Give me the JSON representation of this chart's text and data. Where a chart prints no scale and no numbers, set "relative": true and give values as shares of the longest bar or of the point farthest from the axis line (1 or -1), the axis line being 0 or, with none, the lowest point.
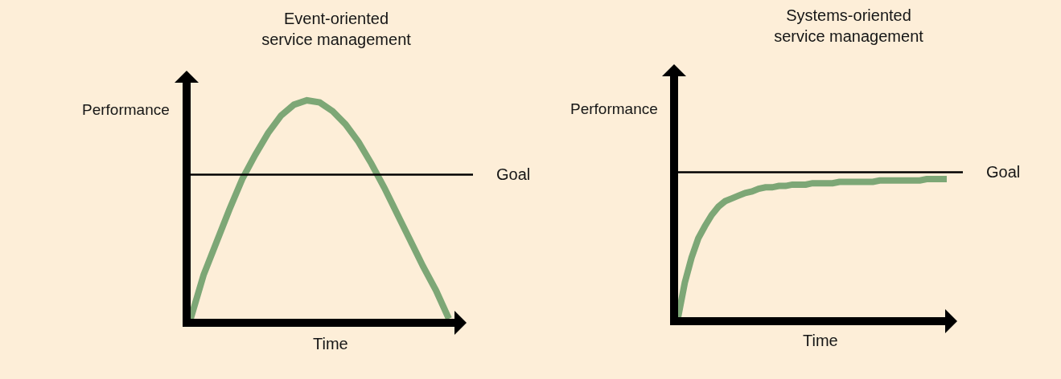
{
  "chart_data": [
    {
      "type": "line",
      "title": "Event-oriented\nservice management",
      "xlabel": "Time",
      "ylabel": "Performance",
      "relative": true,
      "categories": [
        null,
        null,
        null,
        null,
        null,
        null,
        null,
        null,
        null,
        null,
        null,
        null,
        null,
        null,
        null,
        null,
        null,
        null,
        null,
        null,
        null
      ],
      "series": [
        {
          "color": "#7da776",
          "values": [
            0,
            0.2,
            0.35,
            0.5,
            0.64,
            0.75,
            0.85,
            0.93,
            0.98,
            1,
            0.99,
            0.95,
            0.89,
            0.81,
            0.71,
            0.6,
            0.48,
            0.36,
            0.24,
            0.13,
            0
          ]
        }
      ],
      "ref_lines": [
        {
          "axis": "y",
          "value": 0.66,
          "label": "Goal",
          "color": "#000000"
        }
      ]
    },
    {
      "type": "line",
      "title": "Systems-oriented\nservice management",
      "xlabel": "Time",
      "ylabel": "Performance",
      "relative": true,
      "categories": [
        null,
        null,
        null,
        null,
        null,
        null,
        null,
        null,
        null,
        null,
        null,
        null,
        null,
        null,
        null,
        null,
        null,
        null,
        null,
        null,
        null,
        null,
        null,
        null,
        null,
        null,
        null,
        null,
        null,
        null,
        null,
        null,
        null,
        null,
        null,
        null,
        null,
        null,
        null,
        null,
        null
      ],
      "series": [
        {
          "color": "#7da776",
          "values": [
            0,
            0.25,
            0.43,
            0.57,
            0.66,
            0.74,
            0.8,
            0.84,
            0.86,
            0.88,
            0.9,
            0.91,
            0.93,
            0.94,
            0.94,
            0.95,
            0.95,
            0.96,
            0.96,
            0.96,
            0.97,
            0.97,
            0.97,
            0.97,
            0.98,
            0.98,
            0.98,
            0.98,
            0.98,
            0.98,
            0.99,
            0.99,
            0.99,
            0.99,
            0.99,
            0.99,
            0.99,
            1,
            1,
            1,
            1
          ]
        }
      ],
      "ref_lines": [
        {
          "axis": "y",
          "value": 1.05,
          "label": "Goal",
          "color": "#000000"
        }
      ]
    }
  ]
}
